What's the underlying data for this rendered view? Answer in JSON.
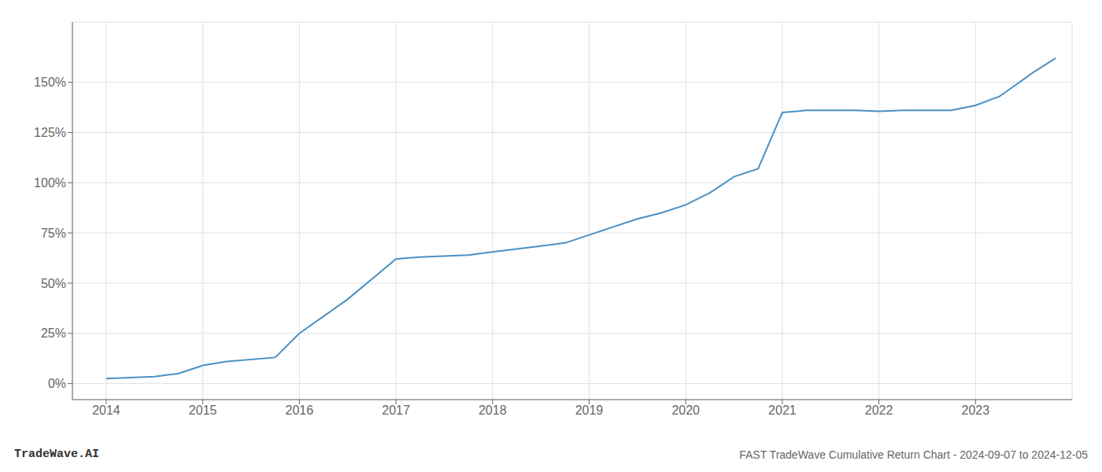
{
  "chart_data": {
    "type": "line",
    "title": "FAST TradeWave Cumulative Return Chart - 2024-09-07 to 2024-12-05",
    "annotations": [
      "TradeWave.AI"
    ],
    "x": [
      2014.0,
      2014.5,
      2014.75,
      2015.0,
      2015.25,
      2015.75,
      2016.0,
      2016.5,
      2017.0,
      2017.25,
      2017.5,
      2017.75,
      2018.0,
      2018.25,
      2018.5,
      2018.75,
      2019.0,
      2019.25,
      2019.5,
      2019.75,
      2020.0,
      2020.25,
      2020.5,
      2020.75,
      2021.0,
      2021.25,
      2021.5,
      2021.75,
      2022.0,
      2022.25,
      2022.5,
      2022.75,
      2023.0,
      2023.25,
      2023.6,
      2023.83
    ],
    "values": [
      2.5,
      3.5,
      5.0,
      9.0,
      11.0,
      13.0,
      25.0,
      42.0,
      62.0,
      63.0,
      63.5,
      64.0,
      65.5,
      67.0,
      68.5,
      70.0,
      74.0,
      78.0,
      82.0,
      85.0,
      89.0,
      95.0,
      103.0,
      107.0,
      135.0,
      136.0,
      136.0,
      136.0,
      135.5,
      136.0,
      136.0,
      136.0,
      138.5,
      143.0,
      155.0,
      162.0
    ],
    "color": "#4a90c4",
    "xlim": [
      2013.65,
      2024.0
    ],
    "ylim": [
      -8,
      180
    ],
    "xticks": [
      2014,
      2015,
      2016,
      2017,
      2018,
      2019,
      2020,
      2021,
      2022,
      2023
    ],
    "yticks": [
      {
        "value": 0,
        "label": "0%"
      },
      {
        "value": 25,
        "label": "25%"
      },
      {
        "value": 50,
        "label": "50%"
      },
      {
        "value": 75,
        "label": "75%"
      },
      {
        "value": 100,
        "label": "100%"
      },
      {
        "value": 125,
        "label": "125%"
      },
      {
        "value": 150,
        "label": "150%"
      }
    ],
    "grid": true
  }
}
